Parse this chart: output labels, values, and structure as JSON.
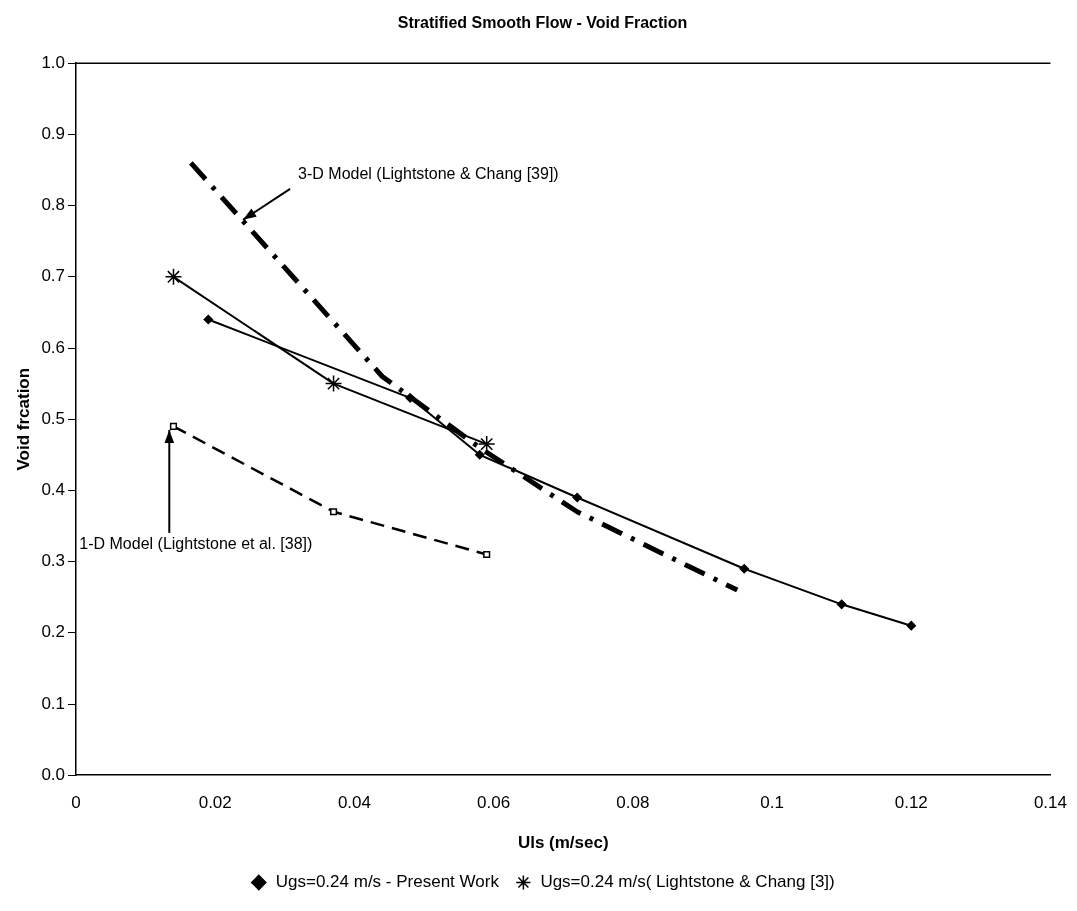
{
  "chart_data": {
    "type": "line",
    "title": "Stratified Smooth Flow - Void Fraction",
    "xlabel": "Uls (m/sec)",
    "ylabel": "Void frcation",
    "xlim": [
      0,
      0.14
    ],
    "xticks": [
      0,
      0.02,
      0.04,
      0.06,
      0.08,
      0.1,
      0.12,
      0.14
    ],
    "ylim": [
      0,
      1
    ],
    "yticks": [
      {
        "value": 0,
        "label": "0.0"
      },
      0.1,
      0.2,
      0.3,
      0.4,
      0.5,
      0.6,
      0.7,
      0.8,
      0.9,
      {
        "value": 1,
        "label": "1.0"
      }
    ],
    "grid": false,
    "legend": "bottom",
    "series": [
      {
        "name": "Ugs=0.24 m/s - Present Work",
        "color": "#000000",
        "marker": "diamond",
        "line_style": "solid",
        "x": [
          0.019,
          0.048,
          0.058,
          0.072,
          0.096,
          0.11,
          0.12
        ],
        "values": [
          0.64,
          0.53,
          0.45,
          0.39,
          0.29,
          0.24,
          0.21
        ]
      },
      {
        "name": "Ugs=0.24 m/s( Lightstone & Chang [3])",
        "color": "#000000",
        "marker": "cross",
        "line_style": "solid",
        "x": [
          0.014,
          0.037,
          0.059
        ],
        "values": [
          0.7,
          0.55,
          0.465
        ]
      },
      {
        "color": "#000000",
        "marker": "square",
        "line_style": "dashed",
        "x": [
          0.014,
          0.037,
          0.059
        ],
        "values": [
          0.49,
          0.37,
          0.31
        ]
      },
      {
        "color": "#000000",
        "marker": "none",
        "line_style": "dashdot",
        "x": [
          0.0165,
          0.044,
          0.058,
          0.072,
          0.095
        ],
        "values": [
          0.86,
          0.56,
          0.46,
          0.37,
          0.26
        ]
      }
    ],
    "annotations": [
      {
        "text": "3-D Model (Lightstone & Chang [39])",
        "x": 0.024,
        "y": 0.78
      },
      {
        "text": "1-D Model (Lightstone et al. [38])",
        "x": 0.0134,
        "y": 0.485
      }
    ]
  }
}
